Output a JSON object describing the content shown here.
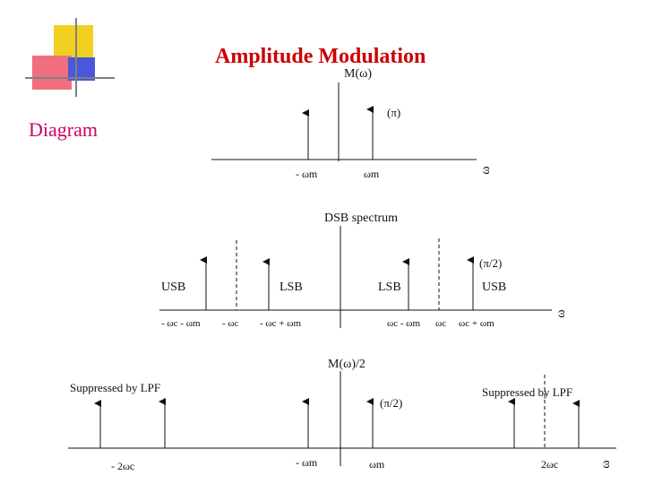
{
  "slide": {
    "title": "Amplitude Modulation",
    "subtitle": "Diagram"
  },
  "decor": {
    "colors": [
      "#f2d020",
      "#ef6f7f",
      "#4a57d8",
      "#808080"
    ]
  },
  "panel1": {
    "heading": "M(ω)",
    "arrow_label": "(π)",
    "axis_label": "ω",
    "tick_labels": [
      "- ωm",
      "ωm"
    ]
  },
  "panel2": {
    "heading": "DSB spectrum",
    "arrow_label": "(π/2)",
    "axis_label": "ω",
    "band_labels": [
      "USB",
      "LSB",
      "LSB",
      "USB"
    ],
    "tick_labels": [
      "- ωc - ωm",
      "- ωc",
      "- ωc + ωm",
      "ωc - ωm",
      "ωc",
      "ωc + ωm"
    ]
  },
  "panel3": {
    "heading": "M(ω)/2",
    "arrow_label": "(π/2)",
    "axis_label": "ω",
    "suppressed_left": "Suppressed by LPF",
    "suppressed_right": "Suppressed by LPF",
    "tick_labels": [
      "- 2ωc",
      "- ωm",
      "ωm",
      "2ωc"
    ]
  }
}
